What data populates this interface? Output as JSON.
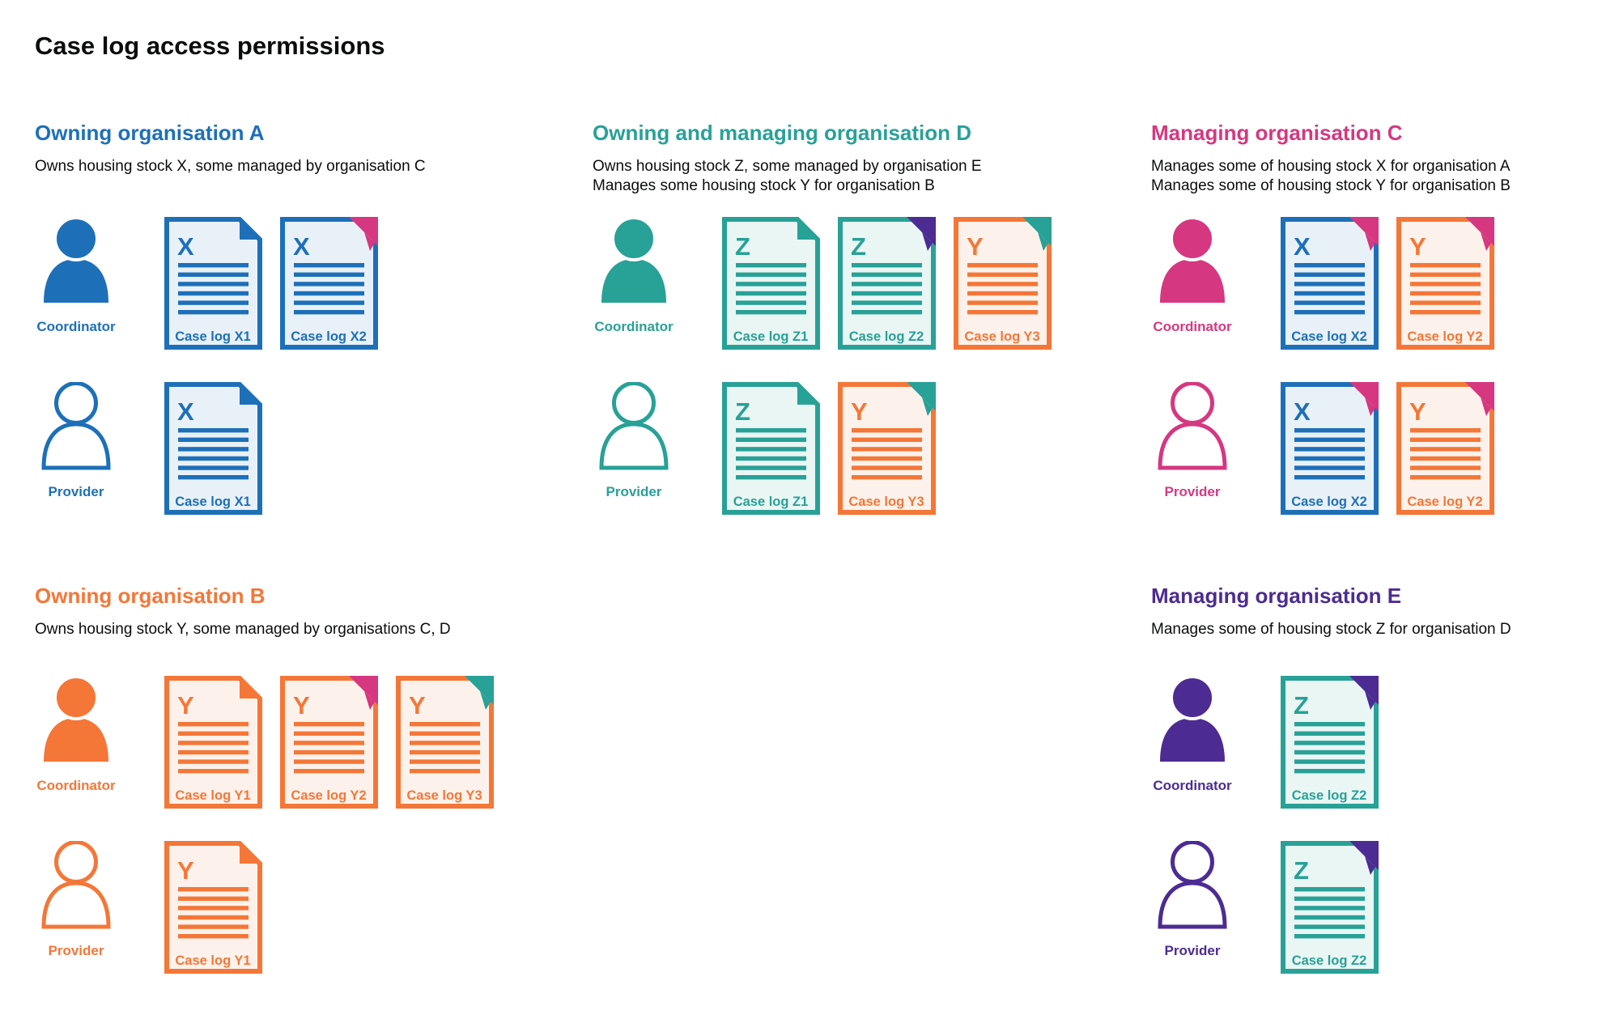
{
  "title": "Case log access permissions",
  "roles": {
    "coordinator": "Coordinator",
    "provider": "Provider"
  },
  "palette": {
    "blue": "#1d70b8",
    "teal": "#28a197",
    "pink": "#d53880",
    "orange": "#f47738",
    "purple": "#4c2c92",
    "text": "#0b0c0c",
    "blue_tint": "#e9f1f8",
    "teal_tint": "#eaf6f4",
    "orange_tint": "#fdf2eb"
  },
  "sections": [
    {
      "slot": "a",
      "heading": "Owning organisation A",
      "org_color": "blue",
      "description": [
        "Owns housing stock X, some managed by organisation C"
      ],
      "rows": [
        {
          "role": "coordinator",
          "person_style": "filled",
          "docs": [
            {
              "letter": "X",
              "label": "Case log X1",
              "doc_color": "blue",
              "corner_color": "blue",
              "corner_style": "fold"
            },
            {
              "letter": "X",
              "label": "Case log X2",
              "doc_color": "blue",
              "corner_color": "pink",
              "corner_style": "overlay"
            }
          ]
        },
        {
          "role": "provider",
          "person_style": "outline",
          "docs": [
            {
              "letter": "X",
              "label": "Case log X1",
              "doc_color": "blue",
              "corner_color": "blue",
              "corner_style": "fold"
            }
          ]
        }
      ]
    },
    {
      "slot": "d",
      "heading": "Owning and managing organisation D",
      "org_color": "teal",
      "description": [
        "Owns housing stock Z, some managed by organisation E",
        "Manages some housing stock Y for organisation B"
      ],
      "rows": [
        {
          "role": "coordinator",
          "person_style": "filled",
          "docs": [
            {
              "letter": "Z",
              "label": "Case log Z1",
              "doc_color": "teal",
              "corner_color": "teal",
              "corner_style": "fold"
            },
            {
              "letter": "Z",
              "label": "Case log Z2",
              "doc_color": "teal",
              "corner_color": "purple",
              "corner_style": "overlay"
            },
            {
              "letter": "Y",
              "label": "Case log Y3",
              "doc_color": "orange",
              "corner_color": "teal",
              "corner_style": "overlay"
            }
          ]
        },
        {
          "role": "provider",
          "person_style": "outline",
          "docs": [
            {
              "letter": "Z",
              "label": "Case log Z1",
              "doc_color": "teal",
              "corner_color": "teal",
              "corner_style": "fold"
            },
            {
              "letter": "Y",
              "label": "Case log Y3",
              "doc_color": "orange",
              "corner_color": "teal",
              "corner_style": "overlay"
            }
          ]
        }
      ]
    },
    {
      "slot": "c",
      "heading": "Managing organisation C",
      "org_color": "pink",
      "description": [
        "Manages some of housing stock X for organisation A",
        "Manages some of housing stock Y for organisation B"
      ],
      "rows": [
        {
          "role": "coordinator",
          "person_style": "filled",
          "docs": [
            {
              "letter": "X",
              "label": "Case log X2",
              "doc_color": "blue",
              "corner_color": "pink",
              "corner_style": "overlay"
            },
            {
              "letter": "Y",
              "label": "Case log Y2",
              "doc_color": "orange",
              "corner_color": "pink",
              "corner_style": "overlay"
            }
          ]
        },
        {
          "role": "provider",
          "person_style": "outline",
          "docs": [
            {
              "letter": "X",
              "label": "Case log X2",
              "doc_color": "blue",
              "corner_color": "pink",
              "corner_style": "overlay"
            },
            {
              "letter": "Y",
              "label": "Case log Y2",
              "doc_color": "orange",
              "corner_color": "pink",
              "corner_style": "overlay"
            }
          ]
        }
      ]
    },
    {
      "slot": "b",
      "heading": "Owning organisation B",
      "org_color": "orange",
      "description": [
        "Owns housing stock Y, some managed by organisations C, D"
      ],
      "rows": [
        {
          "role": "coordinator",
          "person_style": "filled",
          "docs": [
            {
              "letter": "Y",
              "label": "Case log Y1",
              "doc_color": "orange",
              "corner_color": "orange",
              "corner_style": "fold"
            },
            {
              "letter": "Y",
              "label": "Case log Y2",
              "doc_color": "orange",
              "corner_color": "pink",
              "corner_style": "overlay"
            },
            {
              "letter": "Y",
              "label": "Case log Y3",
              "doc_color": "orange",
              "corner_color": "teal",
              "corner_style": "overlay"
            }
          ]
        },
        {
          "role": "provider",
          "person_style": "outline",
          "docs": [
            {
              "letter": "Y",
              "label": "Case log Y1",
              "doc_color": "orange",
              "corner_color": "orange",
              "corner_style": "fold"
            }
          ]
        }
      ]
    },
    {
      "slot": "e",
      "heading": "Managing organisation E",
      "org_color": "purple",
      "description": [
        "Manages some of housing stock Z for organisation D"
      ],
      "rows": [
        {
          "role": "coordinator",
          "person_style": "filled",
          "docs": [
            {
              "letter": "Z",
              "label": "Case log Z2",
              "doc_color": "teal",
              "corner_color": "purple",
              "corner_style": "overlay"
            }
          ]
        },
        {
          "role": "provider",
          "person_style": "outline",
          "docs": [
            {
              "letter": "Z",
              "label": "Case log Z2",
              "doc_color": "teal",
              "corner_color": "purple",
              "corner_style": "overlay"
            }
          ]
        }
      ]
    }
  ]
}
